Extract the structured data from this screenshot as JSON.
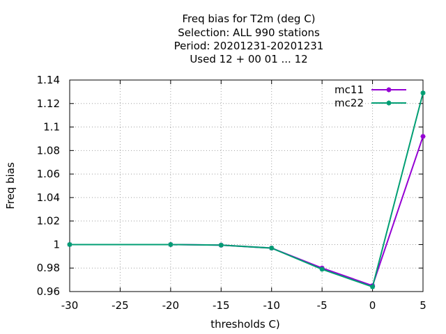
{
  "chart_data": {
    "type": "line",
    "title_lines": [
      "Freq bias  for T2m (deg C)",
      "Selection: ALL    990 stations",
      "Period: 20201231-20201231",
      "Used  12 + 00 01 ... 12"
    ],
    "xlabel": "thresholds C)",
    "ylabel": "Freq bias",
    "xlim": [
      -30,
      5
    ],
    "ylim": [
      0.96,
      1.14
    ],
    "xticks": [
      -30,
      -25,
      -20,
      -15,
      -10,
      -5,
      0,
      5
    ],
    "yticks": [
      0.96,
      0.98,
      1,
      1.02,
      1.04,
      1.06,
      1.08,
      1.1,
      1.12,
      1.14
    ],
    "xtick_labels": [
      "-30",
      "-25",
      "-20",
      "-15",
      "-10",
      "-5",
      "0",
      "5"
    ],
    "ytick_labels": [
      "0.96",
      "0.98",
      "1",
      "1.02",
      "1.04",
      "1.06",
      "1.08",
      "1.1",
      "1.12",
      "1.14"
    ],
    "grid": true,
    "legend_position": "top-right",
    "series": [
      {
        "name": "mc11",
        "color": "#9400d3",
        "x": [
          -30,
          -20,
          -15,
          -10,
          -5,
          0,
          5
        ],
        "y": [
          1.0,
          1.0,
          0.9995,
          0.997,
          0.98,
          0.965,
          1.092
        ]
      },
      {
        "name": "mc22",
        "color": "#009e73",
        "x": [
          -30,
          -20,
          -15,
          -10,
          -5,
          0,
          5
        ],
        "y": [
          1.0,
          1.0,
          0.9995,
          0.997,
          0.979,
          0.964,
          1.129
        ]
      }
    ]
  }
}
